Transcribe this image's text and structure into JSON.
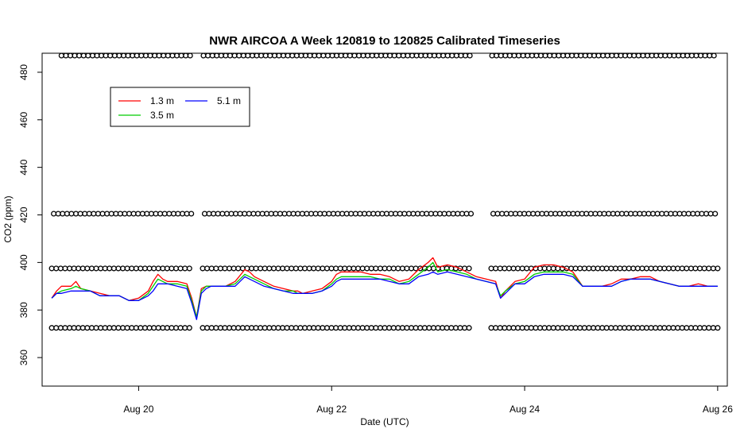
{
  "chart_data": {
    "type": "line",
    "title": "NWR AIRCOA A  Week 120819 to 120825  Calibrated Timeseries",
    "xlabel": "Date (UTC)",
    "ylabel": "CO2 (ppm)",
    "xlim": [
      19.0,
      26.1
    ],
    "ylim": [
      348,
      488
    ],
    "x_ticks": [
      {
        "value": 20,
        "label": "Aug 20"
      },
      {
        "value": 22,
        "label": "Aug 22"
      },
      {
        "value": 24,
        "label": "Aug 24"
      },
      {
        "value": 26,
        "label": "Aug 26"
      }
    ],
    "y_ticks": [
      360,
      380,
      400,
      420,
      440,
      460,
      480
    ],
    "grid": false,
    "legend_position": "top-left",
    "series": [
      {
        "name": "1.3 m",
        "color": "#ff0000",
        "x": [
          19.1,
          19.15,
          19.2,
          19.3,
          19.35,
          19.4,
          19.5,
          19.6,
          19.7,
          19.8,
          19.85,
          19.9,
          20.0,
          20.1,
          20.15,
          20.2,
          20.25,
          20.3,
          20.4,
          20.5,
          20.55,
          20.6,
          20.65,
          20.7,
          20.75,
          20.8,
          20.9,
          21.0,
          21.1,
          21.15,
          21.2,
          21.3,
          21.4,
          21.5,
          21.6,
          21.65,
          21.7,
          21.8,
          21.9,
          22.0,
          22.05,
          22.1,
          22.2,
          22.3,
          22.4,
          22.5,
          22.6,
          22.7,
          22.8,
          22.9,
          23.0,
          23.05,
          23.1,
          23.2,
          23.3,
          23.4,
          23.5,
          23.6,
          23.7,
          23.75,
          23.8,
          23.9,
          24.0,
          24.1,
          24.2,
          24.3,
          24.4,
          24.5,
          24.6,
          24.7,
          24.8,
          24.9,
          25.0,
          25.1,
          25.2,
          25.3,
          25.4,
          25.5,
          25.6,
          25.7,
          25.8,
          25.9,
          26.0
        ],
        "y": [
          385,
          388,
          390,
          390,
          392,
          389,
          388,
          387,
          386,
          386,
          385,
          384,
          385,
          388,
          392,
          395,
          393,
          392,
          392,
          391,
          385,
          377,
          389,
          390,
          390,
          390,
          390,
          392,
          397,
          396,
          394,
          392,
          390,
          389,
          388,
          388,
          387,
          388,
          389,
          392,
          395,
          396,
          396,
          396,
          395,
          395,
          394,
          392,
          393,
          397,
          400,
          402,
          398,
          399,
          398,
          396,
          394,
          393,
          392,
          385,
          388,
          392,
          393,
          398,
          399,
          399,
          398,
          396,
          390,
          390,
          390,
          391,
          393,
          393,
          394,
          394,
          392,
          391,
          390,
          390,
          391,
          390,
          390
        ]
      },
      {
        "name": "3.5 m",
        "color": "#00cc00",
        "x": [
          19.1,
          19.15,
          19.2,
          19.3,
          19.35,
          19.4,
          19.5,
          19.6,
          19.7,
          19.8,
          19.85,
          19.9,
          20.0,
          20.1,
          20.15,
          20.2,
          20.25,
          20.3,
          20.4,
          20.5,
          20.55,
          20.6,
          20.65,
          20.7,
          20.75,
          20.8,
          20.9,
          21.0,
          21.1,
          21.15,
          21.2,
          21.3,
          21.4,
          21.5,
          21.6,
          21.65,
          21.7,
          21.8,
          21.9,
          22.0,
          22.05,
          22.1,
          22.2,
          22.3,
          22.4,
          22.5,
          22.6,
          22.7,
          22.8,
          22.9,
          23.0,
          23.05,
          23.1,
          23.2,
          23.3,
          23.4,
          23.5,
          23.6,
          23.7,
          23.75,
          23.8,
          23.9,
          24.0,
          24.1,
          24.2,
          24.3,
          24.4,
          24.5,
          24.6,
          24.7,
          24.8,
          24.9,
          25.0,
          25.1,
          25.2,
          25.3,
          25.4,
          25.5,
          25.6,
          25.7,
          25.8,
          25.9,
          26.0
        ],
        "y": [
          385,
          387,
          388,
          389,
          390,
          389,
          388,
          386,
          386,
          386,
          385,
          384,
          384,
          387,
          390,
          393,
          392,
          391,
          391,
          390,
          384,
          377,
          388,
          390,
          390,
          390,
          390,
          391,
          395,
          394,
          393,
          391,
          389,
          388,
          388,
          387,
          387,
          387,
          388,
          391,
          393,
          394,
          394,
          394,
          394,
          393,
          393,
          391,
          392,
          395,
          398,
          400,
          396,
          397,
          396,
          395,
          393,
          392,
          391,
          386,
          388,
          391,
          392,
          395,
          396,
          396,
          396,
          395,
          390,
          390,
          390,
          390,
          392,
          393,
          393,
          393,
          392,
          391,
          390,
          390,
          390,
          390,
          390
        ]
      },
      {
        "name": "5.1 m",
        "color": "#0000ff",
        "x": [
          19.1,
          19.15,
          19.2,
          19.3,
          19.35,
          19.4,
          19.5,
          19.6,
          19.7,
          19.8,
          19.85,
          19.9,
          20.0,
          20.1,
          20.15,
          20.2,
          20.25,
          20.3,
          20.4,
          20.5,
          20.55,
          20.6,
          20.65,
          20.7,
          20.75,
          20.8,
          20.9,
          21.0,
          21.1,
          21.15,
          21.2,
          21.3,
          21.4,
          21.5,
          21.6,
          21.65,
          21.7,
          21.8,
          21.9,
          22.0,
          22.05,
          22.1,
          22.2,
          22.3,
          22.4,
          22.5,
          22.6,
          22.7,
          22.8,
          22.9,
          23.0,
          23.05,
          23.1,
          23.2,
          23.3,
          23.4,
          23.5,
          23.6,
          23.7,
          23.75,
          23.8,
          23.9,
          24.0,
          24.1,
          24.2,
          24.3,
          24.4,
          24.5,
          24.6,
          24.7,
          24.8,
          24.9,
          25.0,
          25.1,
          25.2,
          25.3,
          25.4,
          25.5,
          25.6,
          25.7,
          25.8,
          25.9,
          26.0
        ],
        "y": [
          385,
          387,
          387,
          388,
          388,
          388,
          388,
          386,
          386,
          386,
          385,
          384,
          384,
          386,
          388,
          391,
          391,
          391,
          390,
          389,
          383,
          376,
          387,
          389,
          390,
          390,
          390,
          390,
          394,
          393,
          392,
          390,
          389,
          388,
          387,
          387,
          387,
          387,
          388,
          390,
          392,
          393,
          393,
          393,
          393,
          393,
          392,
          391,
          391,
          394,
          395,
          396,
          395,
          396,
          395,
          394,
          393,
          392,
          391,
          385,
          387,
          391,
          391,
          394,
          395,
          395,
          395,
          394,
          390,
          390,
          390,
          390,
          392,
          393,
          393,
          393,
          392,
          391,
          390,
          390,
          390,
          390,
          390
        ]
      }
    ],
    "reference_markers": {
      "symbol": "open-circle",
      "color": "#000000",
      "levels": [
        487,
        420.5,
        397.5,
        372.5
      ],
      "gaps": [
        [
          20.55,
          20.65
        ],
        [
          23.45,
          23.65
        ]
      ]
    }
  }
}
